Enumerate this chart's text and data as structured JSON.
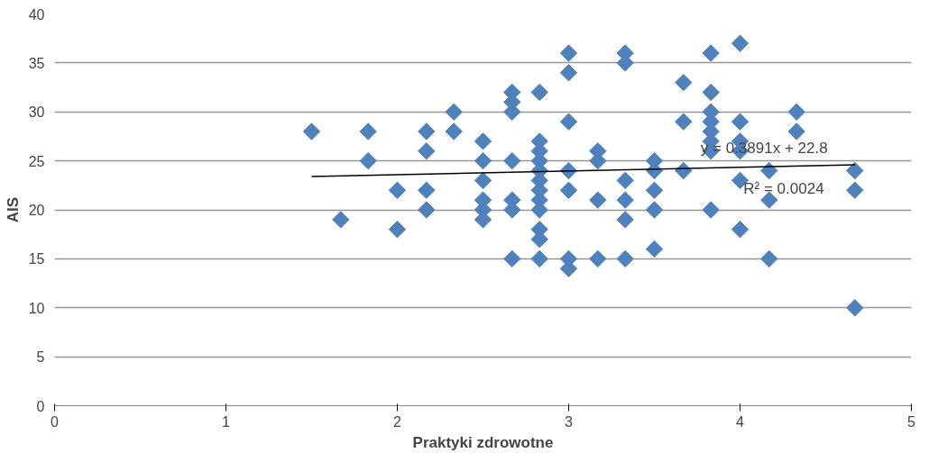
{
  "chart_data": {
    "type": "scatter",
    "xlabel": "Praktyki zdrowotne",
    "ylabel": "AIS",
    "xlim": [
      0,
      5
    ],
    "xticks": [
      0,
      1,
      2,
      3,
      4,
      5
    ],
    "ylim": [
      0,
      40
    ],
    "yticks": [
      0,
      5,
      10,
      15,
      20,
      25,
      30,
      35,
      40
    ],
    "grid": "y",
    "marker": "diamond",
    "annotations": [
      "y = 0.3891x + 22.8",
      "R² = 0.0024"
    ],
    "series": [
      {
        "color": "#4f81bd",
        "x": [
          1.5,
          1.67,
          1.83,
          1.83,
          2.0,
          2.0,
          2.17,
          2.17,
          2.17,
          2.17,
          2.33,
          2.33,
          2.5,
          2.5,
          2.5,
          2.5,
          2.5,
          2.5,
          2.67,
          2.67,
          2.67,
          2.67,
          2.67,
          2.67,
          2.67,
          2.83,
          2.83,
          2.83,
          2.83,
          2.83,
          2.83,
          2.83,
          2.83,
          2.83,
          2.83,
          2.83,
          2.83,
          3.0,
          3.0,
          3.0,
          3.0,
          3.0,
          3.0,
          3.0,
          3.17,
          3.17,
          3.17,
          3.17,
          3.33,
          3.33,
          3.33,
          3.33,
          3.33,
          3.33,
          3.5,
          3.5,
          3.5,
          3.5,
          3.5,
          3.67,
          3.67,
          3.67,
          3.83,
          3.83,
          3.83,
          3.83,
          3.83,
          3.83,
          3.83,
          3.83,
          4.0,
          4.0,
          4.0,
          4.0,
          4.0,
          4.0,
          4.17,
          4.17,
          4.17,
          4.33,
          4.33,
          4.67,
          4.67,
          4.67
        ],
        "values": [
          28,
          19,
          28,
          25,
          22,
          18,
          28,
          26,
          22,
          20,
          30,
          28,
          27,
          25,
          23,
          21,
          20,
          19,
          32,
          31,
          30,
          25,
          21,
          20,
          15,
          32,
          27,
          26,
          25,
          24,
          23,
          22,
          21,
          20,
          18,
          17,
          15,
          36,
          34,
          29,
          24,
          22,
          15,
          14,
          26,
          25,
          21,
          15,
          36,
          35,
          23,
          21,
          19,
          15,
          25,
          24,
          22,
          20,
          16,
          33,
          29,
          24,
          36,
          32,
          30,
          29,
          28,
          27,
          26,
          20,
          37,
          29,
          27,
          26,
          23,
          18,
          24,
          21,
          15,
          30,
          28,
          24,
          22,
          10
        ]
      },
      {
        "type": "line",
        "marker": "none",
        "color": "#000000",
        "x": [
          1.5,
          4.67
        ],
        "values": [
          23.4,
          24.6
        ]
      }
    ]
  }
}
